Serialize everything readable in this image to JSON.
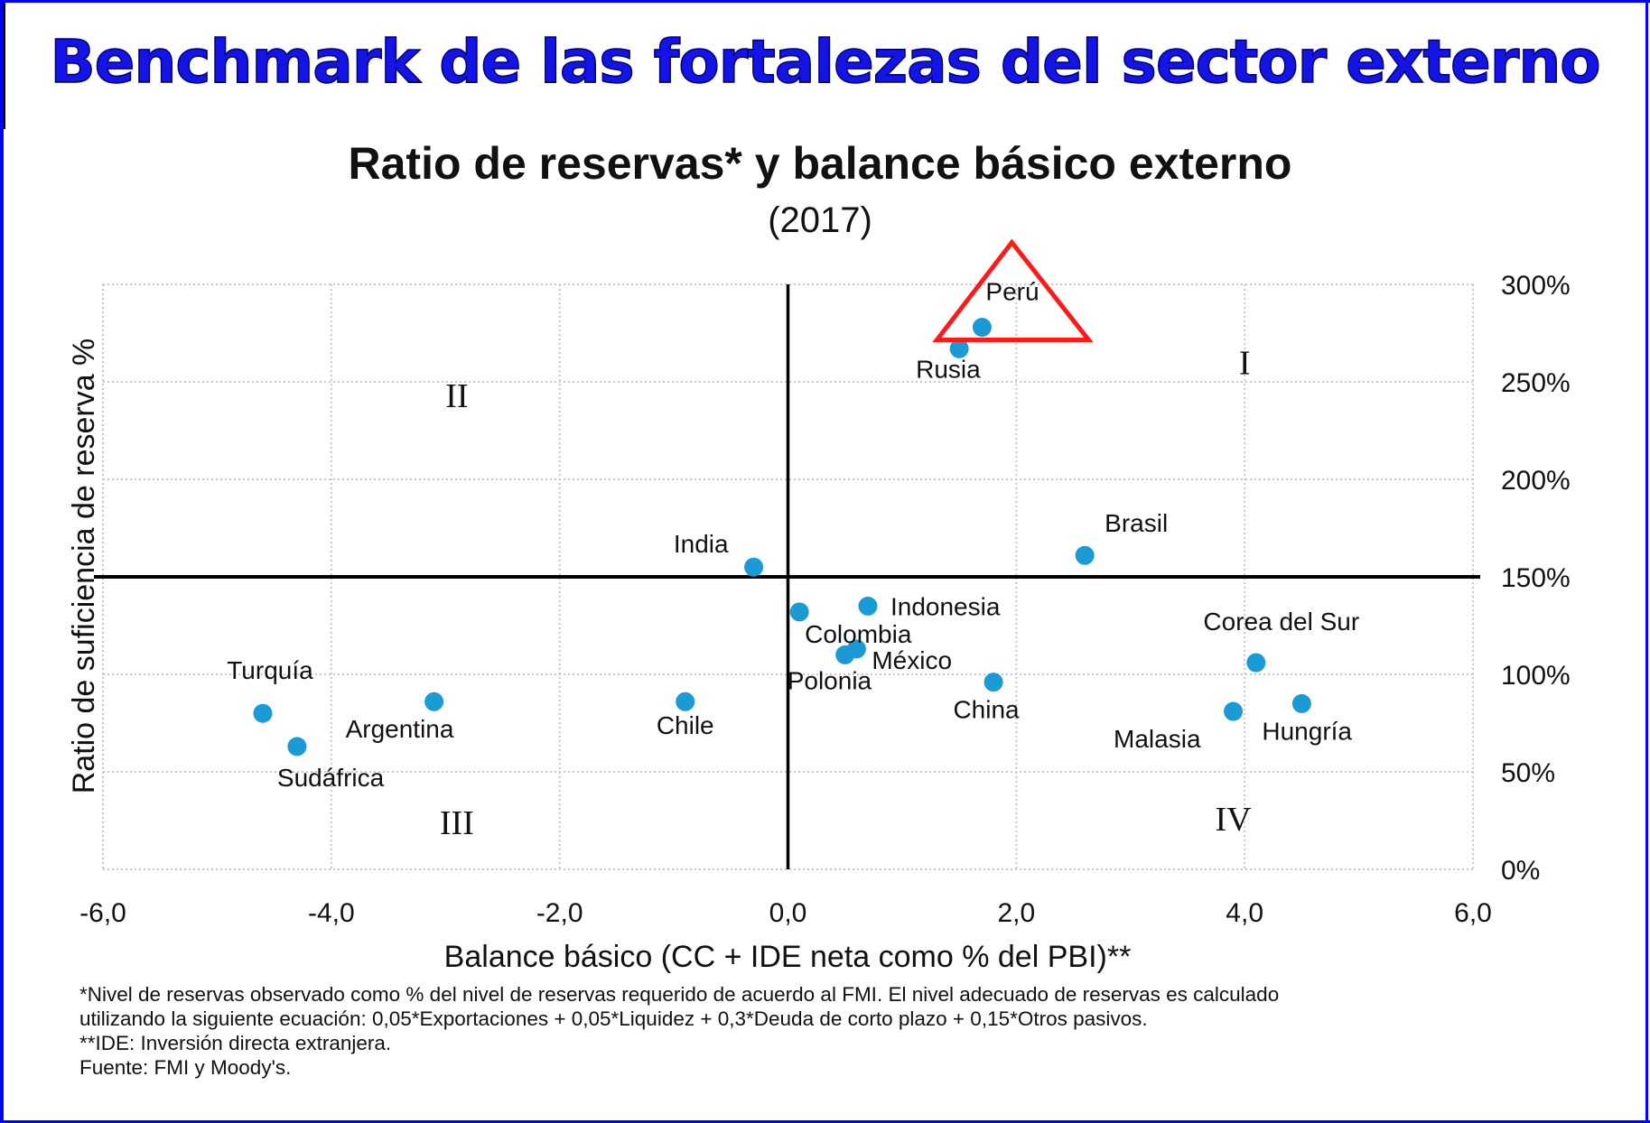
{
  "slide": {
    "title": "Benchmark de las fortalezas del sector externo"
  },
  "colors": {
    "frame": "#0000ff",
    "title": "#1414e6",
    "point": "#1b9ad6",
    "highlight": "#ff1a1a"
  },
  "chart_data": {
    "type": "scatter",
    "title": "Ratio de reservas* y balance básico externo",
    "subtitle": "(2017)",
    "xlabel": "Balance básico (CC + IDE neta como % del PBI)**",
    "ylabel": "Ratio de suficiencia de reserva %",
    "xlim": [
      -6,
      6
    ],
    "ylim": [
      0,
      300
    ],
    "x_ticks": [
      -6,
      -4,
      -2,
      0,
      2,
      4,
      6
    ],
    "x_tick_labels": [
      "-6,0",
      "-4,0",
      "-2,0",
      "0,0",
      "2,0",
      "4,0",
      "6,0"
    ],
    "y_ticks": [
      0,
      50,
      100,
      150,
      200,
      250,
      300
    ],
    "y_tick_labels": [
      "0%",
      "50%",
      "100%",
      "150%",
      "200%",
      "250%",
      "300%"
    ],
    "y_axis_side": "right",
    "grid": true,
    "reference_lines": {
      "x": 0,
      "y": 150
    },
    "quadrant_labels": [
      {
        "label": "I",
        "x": 4.0,
        "y": 260
      },
      {
        "label": "II",
        "x": -2.9,
        "y": 243
      },
      {
        "label": "III",
        "x": -2.9,
        "y": 24
      },
      {
        "label": "IV",
        "x": 3.9,
        "y": 26
      }
    ],
    "points": [
      {
        "name": "Perú",
        "x": 1.7,
        "y": 278,
        "label_pos": "above-right"
      },
      {
        "name": "Rusia",
        "x": 1.5,
        "y": 267,
        "label_pos": "below"
      },
      {
        "name": "India",
        "x": -0.3,
        "y": 155,
        "label_pos": "above-left"
      },
      {
        "name": "Brasil",
        "x": 2.6,
        "y": 161,
        "label_pos": "above-right"
      },
      {
        "name": "Colombia",
        "x": 0.1,
        "y": 132,
        "label_pos": "below-right"
      },
      {
        "name": "Indonesia",
        "x": 0.7,
        "y": 135,
        "label_pos": "right"
      },
      {
        "name": "Polonia",
        "x": 0.5,
        "y": 110,
        "label_pos": "below-left"
      },
      {
        "name": "México",
        "x": 0.6,
        "y": 113,
        "label_pos": "right-below"
      },
      {
        "name": "China",
        "x": 1.8,
        "y": 96,
        "label_pos": "below"
      },
      {
        "name": "Chile",
        "x": -0.9,
        "y": 86,
        "label_pos": "below"
      },
      {
        "name": "Turquía",
        "x": -4.6,
        "y": 80,
        "label_pos": "above"
      },
      {
        "name": "Sudáfrica",
        "x": -4.3,
        "y": 63,
        "label_pos": "below-right"
      },
      {
        "name": "Argentina",
        "x": -3.1,
        "y": 86,
        "label_pos": "below-right"
      },
      {
        "name": "Corea del Sur",
        "x": 4.1,
        "y": 106,
        "label_pos": "above"
      },
      {
        "name": "Malasia",
        "x": 3.9,
        "y": 81,
        "label_pos": "below-left"
      },
      {
        "name": "Hungría",
        "x": 4.5,
        "y": 85,
        "label_pos": "below"
      }
    ],
    "highlight": {
      "shape": "triangle",
      "point": "Perú",
      "color": "#ff1a1a"
    }
  },
  "footnotes": [
    "*Nivel de reservas observado como % del nivel de reservas requerido de acuerdo al FMI. El nivel adecuado de reservas es calculado",
    "utilizando la siguiente ecuación: 0,05*Exportaciones + 0,05*Liquidez + 0,3*Deuda de corto plazo + 0,15*Otros pasivos.",
    "**IDE: Inversión directa extranjera.",
    "Fuente: FMI y Moody's."
  ]
}
